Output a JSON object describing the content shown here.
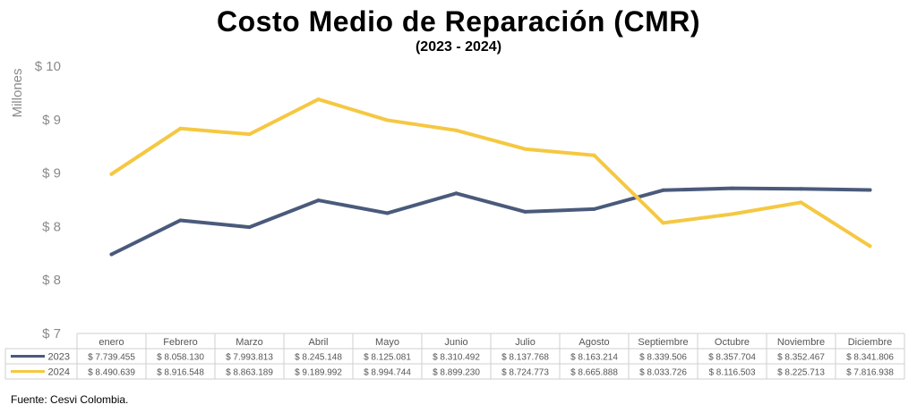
{
  "title": "Costo Medio de Reparación (CMR)",
  "subtitle": "(2023 - 2024)",
  "source": "Fuente: Cesvi Colombia.",
  "colors": {
    "s2023": "#4a5a7b",
    "s2024": "#f5c842"
  },
  "chart_data": {
    "type": "line",
    "ylabel": "Millones",
    "ytick_labels": [
      "$ 7",
      "$ 8",
      "$ 8",
      "$ 9",
      "$ 9",
      "$ 10"
    ],
    "ylim": [
      7.0,
      9.5
    ],
    "grid": false,
    "categories": [
      "enero",
      "Febrero",
      "Marzo",
      "Abril",
      "Mayo",
      "Junio",
      "Julio",
      "Agosto",
      "Septiembre",
      "Octubre",
      "Noviembre",
      "Diciembre"
    ],
    "series": [
      {
        "name": "2023",
        "values": [
          7.739455,
          8.05813,
          7.993813,
          8.245148,
          8.125081,
          8.310492,
          8.137768,
          8.163214,
          8.339506,
          8.357704,
          8.352467,
          8.341806
        ],
        "labels": [
          "$ 7.739.455",
          "$ 8.058.130",
          "$ 7.993.813",
          "$ 8.245.148",
          "$ 8.125.081",
          "$ 8.310.492",
          "$ 8.137.768",
          "$ 8.163.214",
          "$ 8.339.506",
          "$ 8.357.704",
          "$ 8.352.467",
          "$ 8.341.806"
        ]
      },
      {
        "name": "2024",
        "values": [
          8.490639,
          8.916548,
          8.863189,
          9.189992,
          8.994744,
          8.89923,
          8.724773,
          8.665888,
          8.033726,
          8.116503,
          8.225713,
          7.816938
        ],
        "labels": [
          "$ 8.490.639",
          "$ 8.916.548",
          "$ 8.863.189",
          "$ 9.189.992",
          "$ 8.994.744",
          "$ 8.899.230",
          "$ 8.724.773",
          "$ 8.665.888",
          "$ 8.033.726",
          "$ 8.116.503",
          "$ 8.225.713",
          "$ 7.816.938"
        ]
      }
    ]
  }
}
